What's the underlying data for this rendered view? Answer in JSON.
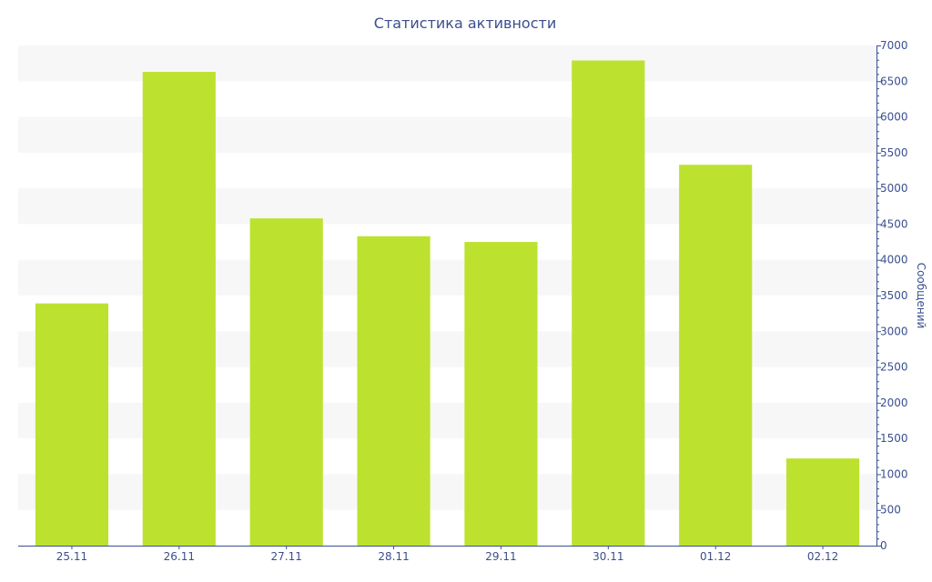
{
  "chart_data": {
    "type": "bar",
    "title": "Статистика активности",
    "xlabel": "",
    "ylabel": "Сообщений",
    "categories": [
      "25.11",
      "26.11",
      "27.11",
      "28.11",
      "29.11",
      "30.11",
      "01.12",
      "02.12"
    ],
    "values": [
      3390,
      6630,
      4580,
      4330,
      4250,
      6790,
      5330,
      1220
    ],
    "ylim": [
      0,
      7000
    ],
    "y_ticks": [
      "0",
      "500",
      "1000",
      "1500",
      "2000",
      "2500",
      "3000",
      "3500",
      "4000",
      "4500",
      "5000",
      "5500",
      "6000",
      "6500",
      "7000"
    ],
    "y_axis_side": "right",
    "grid": "horizontal bands",
    "legend": "none"
  },
  "colors": {
    "bar": "#bce22f",
    "text": "#3a4f8f",
    "axis": "#3a4f8f",
    "band": "#f7f7f7",
    "background": "#ffffff"
  }
}
